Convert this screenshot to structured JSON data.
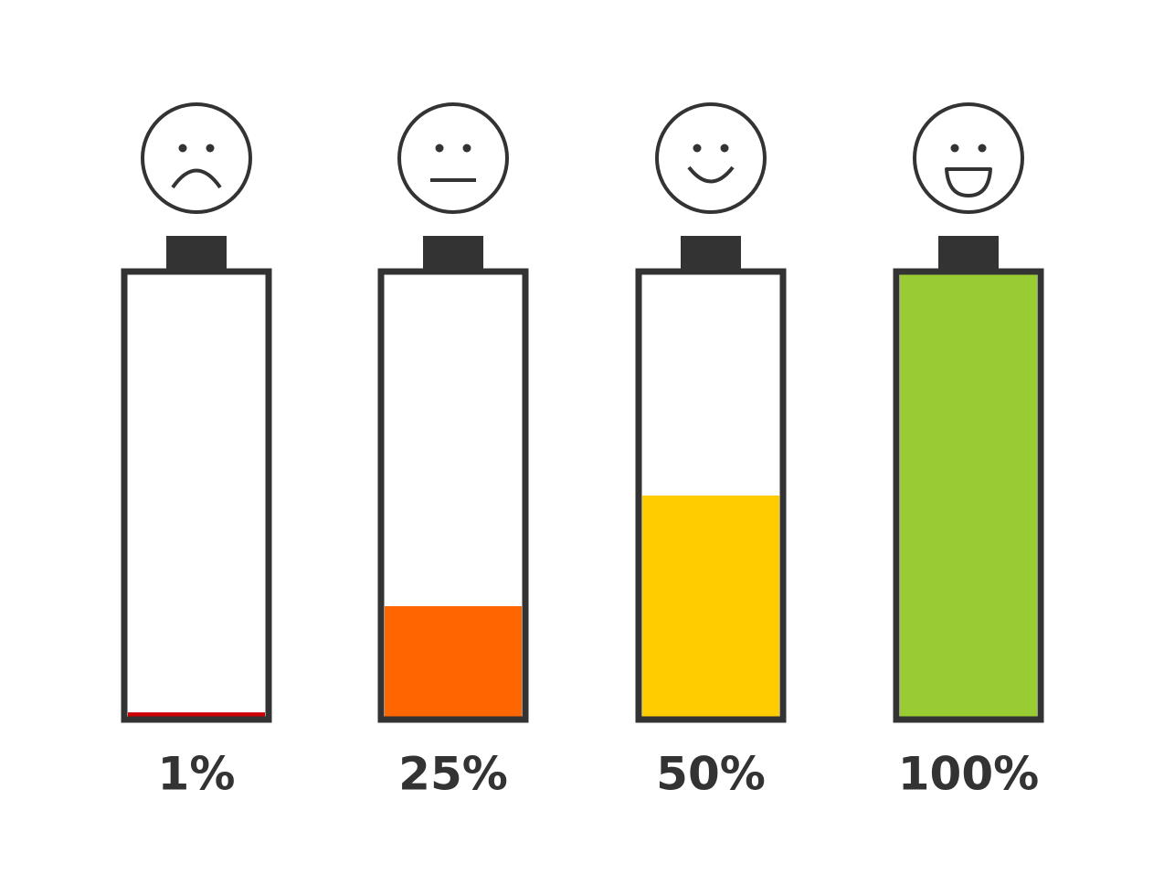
{
  "chart_data": {
    "type": "battery",
    "values": [
      1,
      25,
      50,
      100
    ],
    "value_labels": [
      "1%",
      "25%",
      "50%",
      "100%"
    ],
    "colors": [
      "#cc0000",
      "#ff6600",
      "#ffcc00",
      "#99cc33"
    ],
    "ylim": [
      0,
      100
    ]
  }
}
